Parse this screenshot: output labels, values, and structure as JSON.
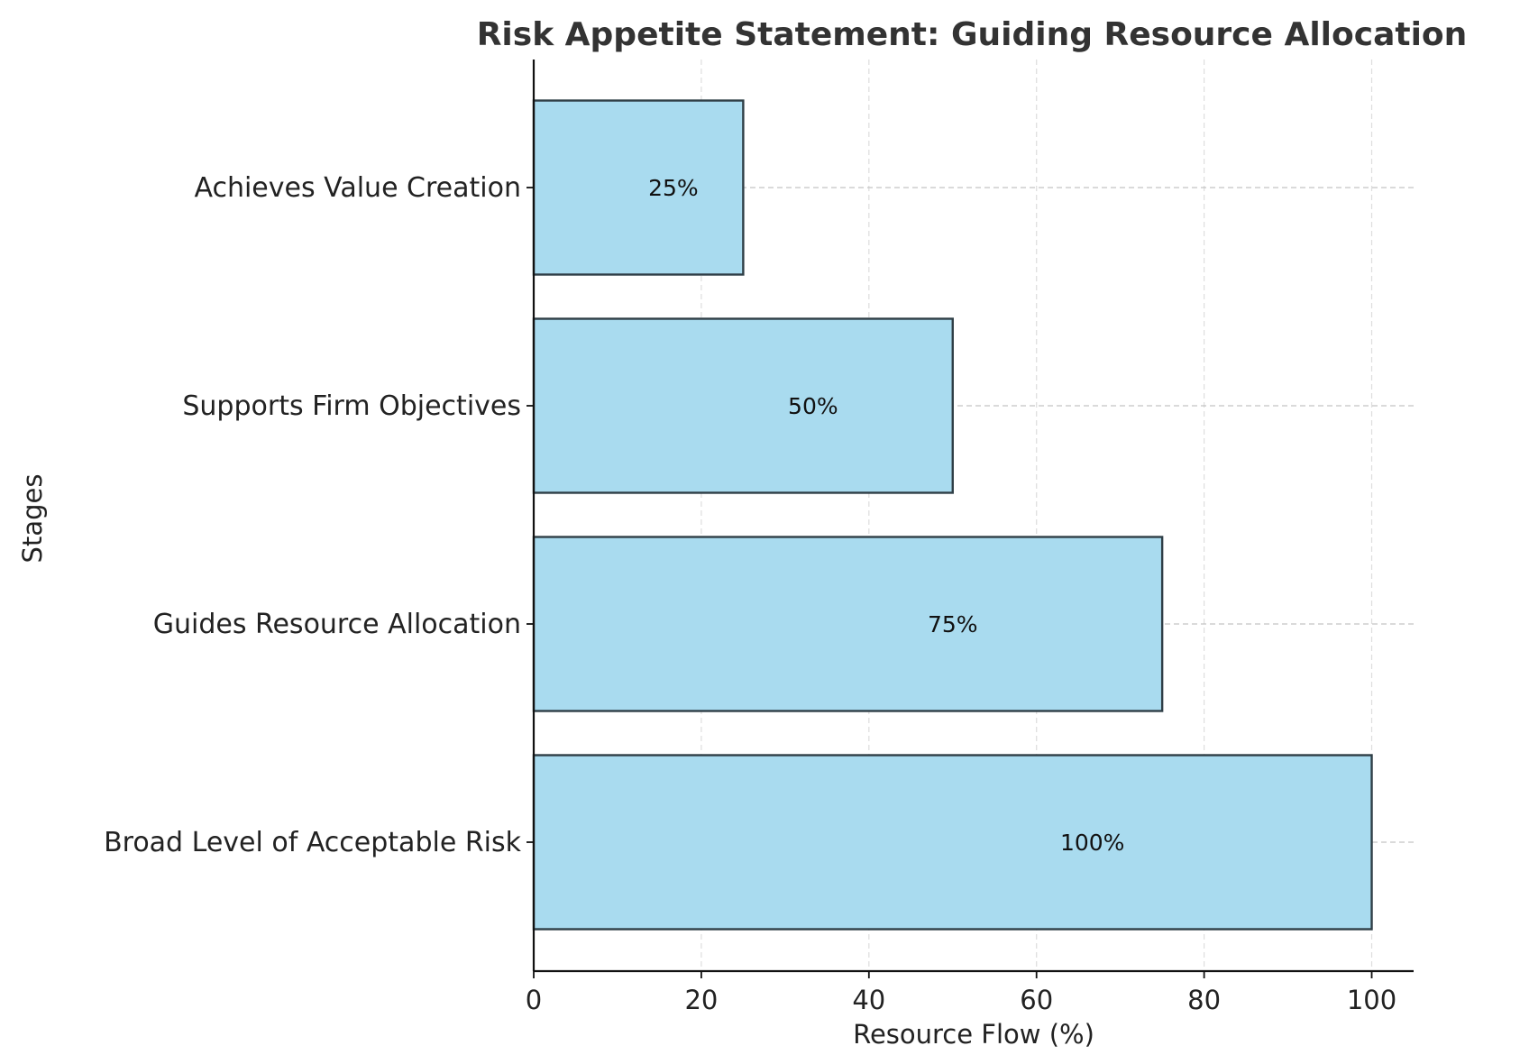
{
  "chart_data": {
    "type": "bar",
    "orientation": "horizontal",
    "title": "Risk Appetite Statement: Guiding Resource Allocation",
    "xlabel": "Resource Flow (%)",
    "ylabel": "Stages",
    "categories": [
      "Broad Level of Acceptable Risk",
      "Guides Resource Allocation",
      "Supports Firm Objectives",
      "Achieves Value Creation"
    ],
    "values": [
      100,
      75,
      50,
      25
    ],
    "data_labels": [
      "100%",
      "75%",
      "50%",
      "25%"
    ],
    "xlim": [
      0,
      105
    ],
    "xticks": [
      0,
      20,
      40,
      60,
      80,
      100
    ],
    "xtick_labels": [
      "0",
      "20",
      "40",
      "60",
      "80",
      "100"
    ],
    "grid": true,
    "bar_color": "#a9dbef",
    "edge_color": "#2f3e46"
  }
}
